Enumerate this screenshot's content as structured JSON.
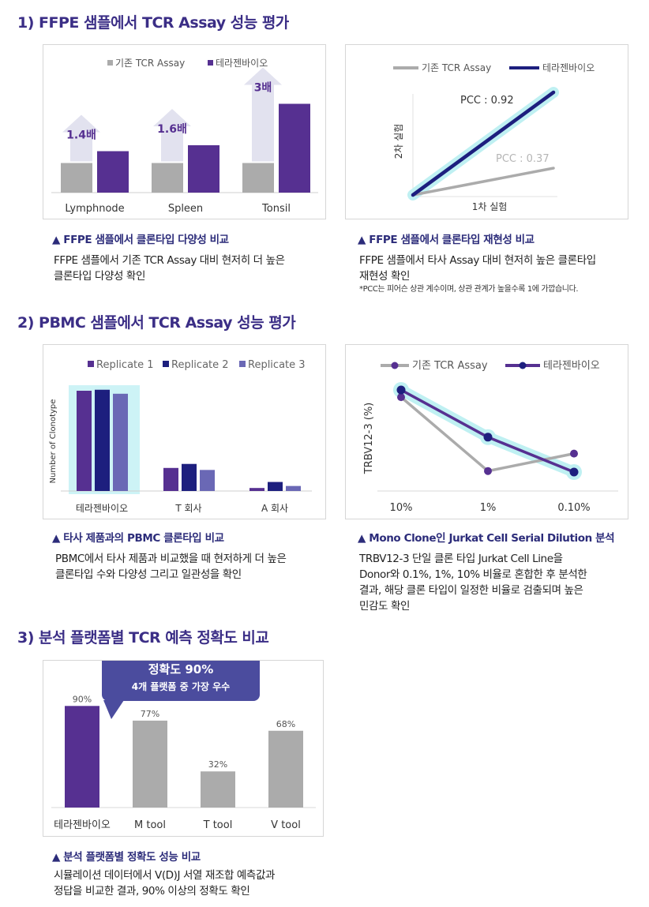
{
  "colors": {
    "purple": "#563091",
    "navy": "#1d1f7e",
    "periwinkle": "#6a68b5",
    "gray": "#ababab",
    "glow": "#bff0f2",
    "title": "#3b2e86",
    "callout": "#4b4c9e"
  },
  "sections": [
    {
      "title": "1) FFPE 샘플에서 TCR Assay 성능 평가"
    },
    {
      "title": "2) PBMC 샘플에서 TCR Assay 성능 평가"
    },
    {
      "title": "3) 분석 플랫폼별 TCR 예측 정확도 비교"
    }
  ],
  "captions": {
    "c1": {
      "title": "▲ FFPE 샘플에서 클론타입 다양성 비교",
      "lines": [
        "FFPE 샘플에서 기존 TCR Assay 대비 현저히 더 높은",
        "클론타입 다양성 확인"
      ]
    },
    "c2": {
      "title": "▲ FFPE 샘플에서 클론타입 재현성 비교",
      "lines": [
        "FFPE 샘플에서 타사 Assay 대비 현저히 높은 클론타입",
        "재현성 확인"
      ],
      "note": "*PCC는 피어슨 상관 계수이며, 상관 관계가 높을수록 1에 가깝습니다."
    },
    "c3": {
      "title": "▲ 타사 제품과의 PBMC 클론타입 비교",
      "lines": [
        "PBMC에서 타사 제품과 비교했을 때 현저하게 더 높은",
        "클론타입 수와 다양성 그리고 일관성을 확인"
      ]
    },
    "c4": {
      "title": "▲ Mono Clone인 Jurkat Cell Serial Dilution 분석",
      "lines": [
        "TRBV12-3 단일 클론 타입 Jurkat Cell Line을",
        "Donor와 0.1%, 1%, 10% 비율로 혼합한 후 분석한",
        "결과, 해당 클론 타입이 일정한 비율로 검출되며 높은",
        "민감도 확인"
      ]
    },
    "c5": {
      "title": "▲ 분석 플랫폼별 정확도 성능 비교",
      "lines": [
        "시뮬레이션 데이터에서 V(D)J 서열 재조합 예측값과",
        "정답을 비교한 결과, 90% 이상의 정확도 확인"
      ]
    }
  },
  "chart_data": [
    {
      "type": "bar",
      "categories": [
        "Lymphnode",
        "Spleen",
        "Tonsil"
      ],
      "series": [
        {
          "name": "기존 TCR Assay",
          "values": [
            1.0,
            1.0,
            1.0
          ]
        },
        {
          "name": "테라젠바이오",
          "values": [
            1.4,
            1.6,
            3.0
          ]
        }
      ],
      "annotations": [
        "1.4배",
        "1.6배",
        "3배"
      ],
      "legend": "top"
    },
    {
      "type": "line",
      "series": [
        {
          "name": "기존 TCR Assay",
          "label": "PCC : 0.37"
        },
        {
          "name": "테라젠바이오",
          "label": "PCC : 0.92"
        }
      ],
      "xlabel": "1차 실험",
      "ylabel": "2차 실험",
      "legend": "top"
    },
    {
      "type": "bar",
      "categories": [
        "테라젠바이오",
        "T 회사",
        "A 회사"
      ],
      "series": [
        {
          "name": "Replicate 1",
          "values": [
            100,
            23,
            3
          ]
        },
        {
          "name": "Replicate 2",
          "values": [
            101,
            27,
            9
          ]
        },
        {
          "name": "Replicate 3",
          "values": [
            97,
            21,
            5
          ]
        }
      ],
      "ylabel": "Number of Clonotype",
      "legend": "top"
    },
    {
      "type": "line",
      "categories": [
        "10%",
        "1%",
        "0.10%"
      ],
      "series": [
        {
          "name": "기존 TCR Assay",
          "values": [
            93,
            21,
            38
          ]
        },
        {
          "name": "테라젠바이오",
          "values": [
            100,
            54,
            20
          ]
        }
      ],
      "ylabel": "TRBV12-3 (%)",
      "legend": "top"
    },
    {
      "type": "bar",
      "categories": [
        "테라젠바이오",
        "M tool",
        "T tool",
        "V tool"
      ],
      "values": [
        90,
        77,
        32,
        68
      ],
      "labels": [
        "90%",
        "77%",
        "32%",
        "68%"
      ],
      "callout": {
        "line1": "정확도 90%",
        "line2": "4개 플랫폼 중 가장 우수"
      }
    }
  ]
}
